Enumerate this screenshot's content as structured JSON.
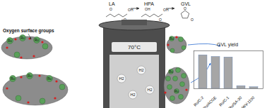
{
  "molecules": [
    {
      "label": "LA",
      "atoms": [
        "O",
        "OH",
        "O"
      ]
    },
    {
      "label": "HPA",
      "atoms": [
        "OH",
        "OH",
        "O"
      ]
    },
    {
      "label": "GVL",
      "atoms": [
        "O",
        "O"
      ]
    }
  ],
  "reactor": {
    "temperature": "70°C",
    "gas": "H2"
  },
  "annotation": "Oxygen surface groups",
  "particle_label": "Ru",
  "chart_data": {
    "type": "bar",
    "title": "GVL yield",
    "categories": [
      "Ru/C-2",
      "Ru/ACGE",
      "Ru/C-1",
      "Ru/SA-30",
      "Ru/WV-1100"
    ],
    "values": [
      62,
      59,
      58,
      5,
      3
    ],
    "color": "#a6a6a6",
    "ylim": [
      0,
      70
    ],
    "tick_labels": "x"
  }
}
